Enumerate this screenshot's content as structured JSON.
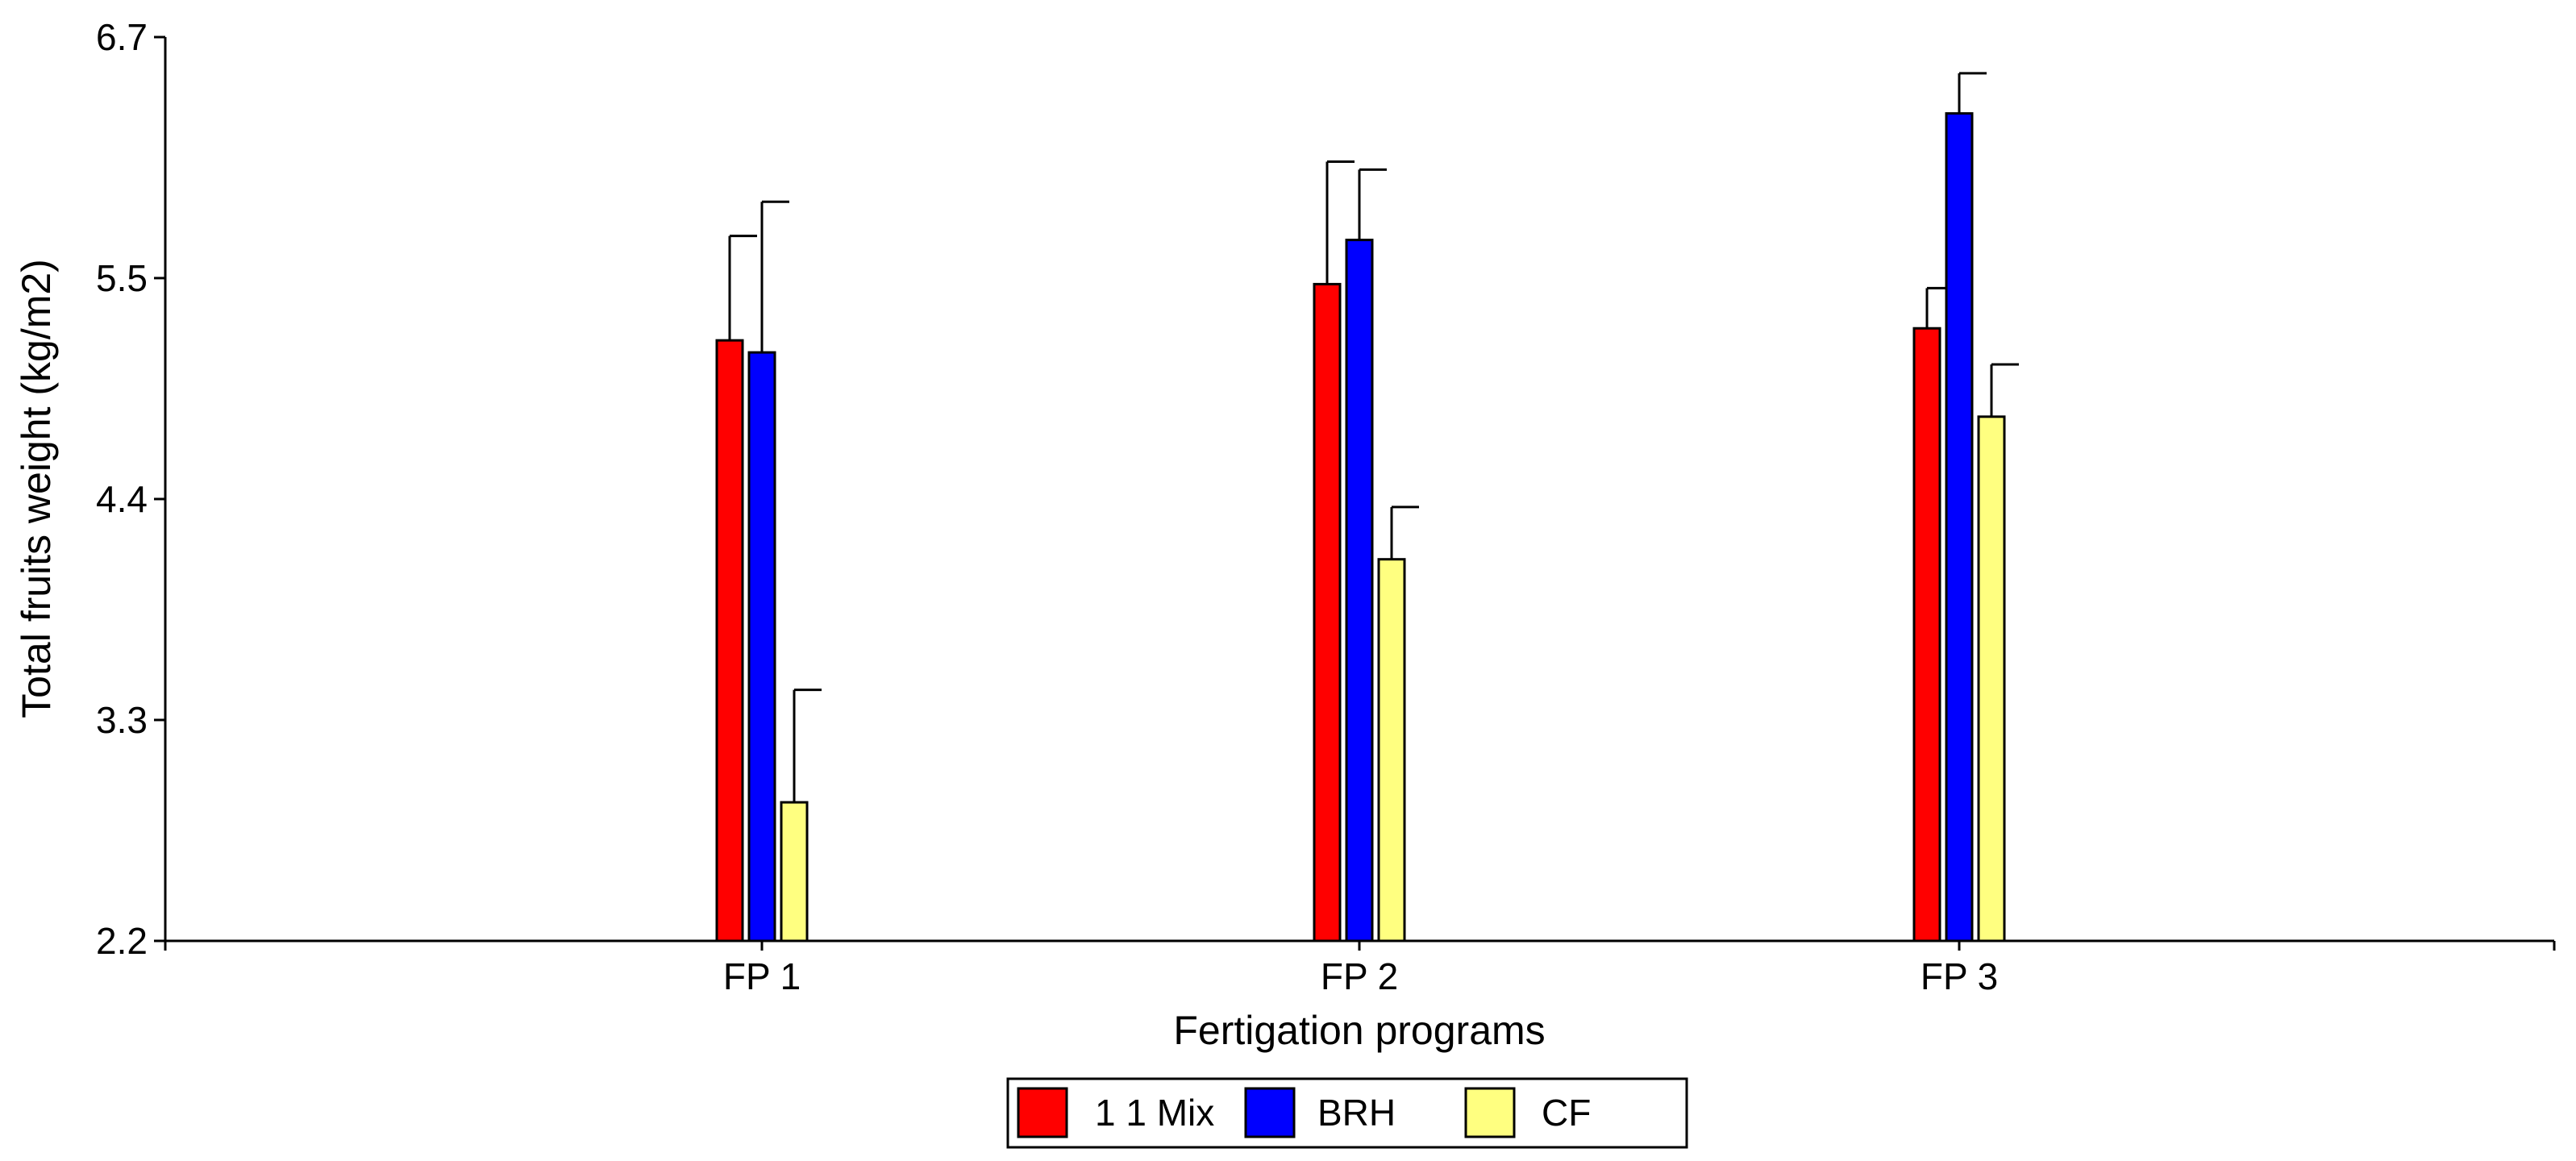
{
  "chart_data": {
    "type": "bar",
    "title": "",
    "xlabel": "Fertigation programs",
    "ylabel": "Total fruits weight (kg/m2)",
    "ylim": [
      2.2,
      6.7
    ],
    "yticks": [
      "2.2",
      "3.3",
      "4.4",
      "5.5",
      "6.7"
    ],
    "categories": [
      "FP 1",
      "FP 2",
      "FP 3"
    ],
    "series": [
      {
        "name": "1 1 Mix",
        "color": "#ff0000",
        "values": [
          5.19,
          5.47,
          5.25
        ],
        "errors": [
          0.52,
          0.61,
          0.2
        ]
      },
      {
        "name": "BRH",
        "color": "#0000ff",
        "values": [
          5.13,
          5.69,
          6.32
        ],
        "errors": [
          0.75,
          0.35,
          0.2
        ]
      },
      {
        "name": "CF",
        "color": "#ffff80",
        "values": [
          2.89,
          4.1,
          4.81
        ],
        "errors": [
          0.56,
          0.26,
          0.26
        ]
      }
    ],
    "legend_position": "bottom-center"
  }
}
